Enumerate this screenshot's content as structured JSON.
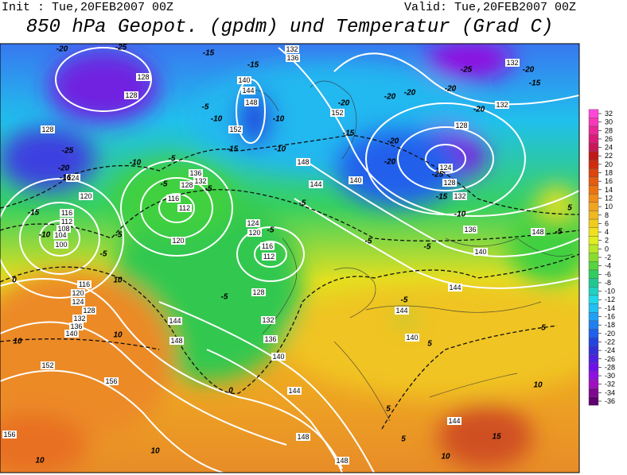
{
  "header": {
    "init": "Init : Tue,20FEB2007 00Z",
    "valid": "Valid: Tue,20FEB2007 00Z",
    "title": "850 hPa Geopot. (gpdm) und Temperatur (Grad C)"
  },
  "colorbar": {
    "ticks": [
      32,
      30,
      28,
      26,
      24,
      22,
      20,
      18,
      16,
      14,
      12,
      10,
      8,
      6,
      4,
      2,
      0,
      -2,
      -4,
      -6,
      -8,
      -10,
      -12,
      -14,
      -16,
      -18,
      -20,
      -22,
      -24,
      -26,
      -28,
      -30,
      -32,
      -34,
      -36
    ],
    "colors": [
      "#ff48d8",
      "#f838b8",
      "#e82898",
      "#d81c78",
      "#c81858",
      "#c01818",
      "#d02c10",
      "#dc4410",
      "#e45c10",
      "#ec7410",
      "#f08c18",
      "#f0a420",
      "#f0b820",
      "#f0cc20",
      "#f0e020",
      "#e0ee20",
      "#b8e628",
      "#88dc30",
      "#58d440",
      "#30cc60",
      "#20c890",
      "#20d0c0",
      "#20d8e8",
      "#20c0f4",
      "#20a0f4",
      "#2080f0",
      "#2060ec",
      "#2444e0",
      "#3430d8",
      "#5020e0",
      "#7010e8",
      "#9010e0",
      "#a010c0",
      "#800890",
      "#600070"
    ]
  },
  "geopotential_labels": [
    128,
    128,
    128,
    124,
    120,
    116,
    112,
    108,
    104,
    100,
    116,
    120,
    124,
    128,
    132,
    136,
    140,
    152,
    156,
    156,
    132,
    136,
    140,
    144,
    148,
    152,
    136,
    132,
    128,
    116,
    112,
    120,
    124,
    120,
    116,
    112,
    128,
    132,
    136,
    140,
    144,
    148,
    144,
    148,
    148,
    144,
    140,
    148,
    152,
    132,
    128,
    124,
    128,
    132,
    136,
    140,
    148,
    144,
    144,
    140,
    144,
    132
  ],
  "temperature_labels": [
    -20,
    -25,
    -25,
    -20,
    -16,
    -15,
    -10,
    -5,
    -5,
    0,
    10,
    10,
    10,
    -10,
    -5,
    -5,
    -5,
    -10,
    -15,
    -10,
    -10,
    -15,
    -15,
    -5,
    -5,
    -5,
    -5,
    -5,
    0,
    -5,
    5,
    5,
    5,
    10,
    15,
    10,
    10,
    5,
    10,
    -5,
    -20,
    -20,
    -20,
    -15,
    -20,
    -20,
    -25,
    -20,
    -20,
    -20,
    -15,
    -25,
    -15,
    -10,
    -5,
    5
  ]
}
